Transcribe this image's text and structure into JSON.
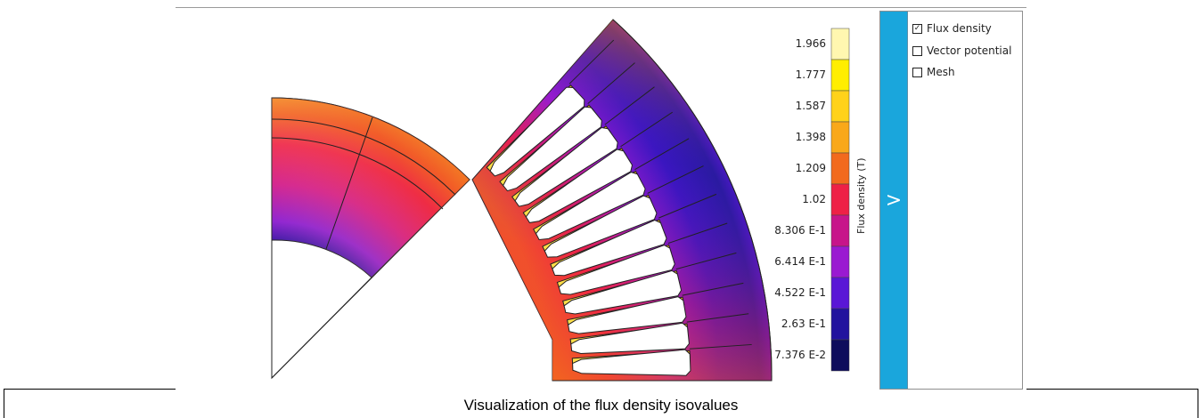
{
  "legend": {
    "title": "Flux density (T)",
    "labels": [
      "1.966",
      "1.777",
      "1.587",
      "1.398",
      "1.209",
      "1.02",
      "8.306 E-1",
      "6.414 E-1",
      "4.522 E-1",
      "2.63 E-1",
      "7.376 E-2"
    ],
    "colors": [
      "#fff7b0",
      "#ffee00",
      "#ffd21a",
      "#f9a81a",
      "#f26a1d",
      "#ee2146",
      "#c7158a",
      "#9a1ad1",
      "#5a17d6",
      "#22139e",
      "#0e0d5c"
    ]
  },
  "panel": {
    "toggle_glyph": ">",
    "toggle_color": "#1aa6dc",
    "options": [
      {
        "label": "Flux density",
        "checked": true,
        "mark": "✓"
      },
      {
        "label": "Vector potential",
        "checked": false,
        "mark": ""
      },
      {
        "label": "Mesh",
        "checked": false,
        "mark": ""
      }
    ]
  },
  "caption": "Visualization of the flux density isovalues"
}
